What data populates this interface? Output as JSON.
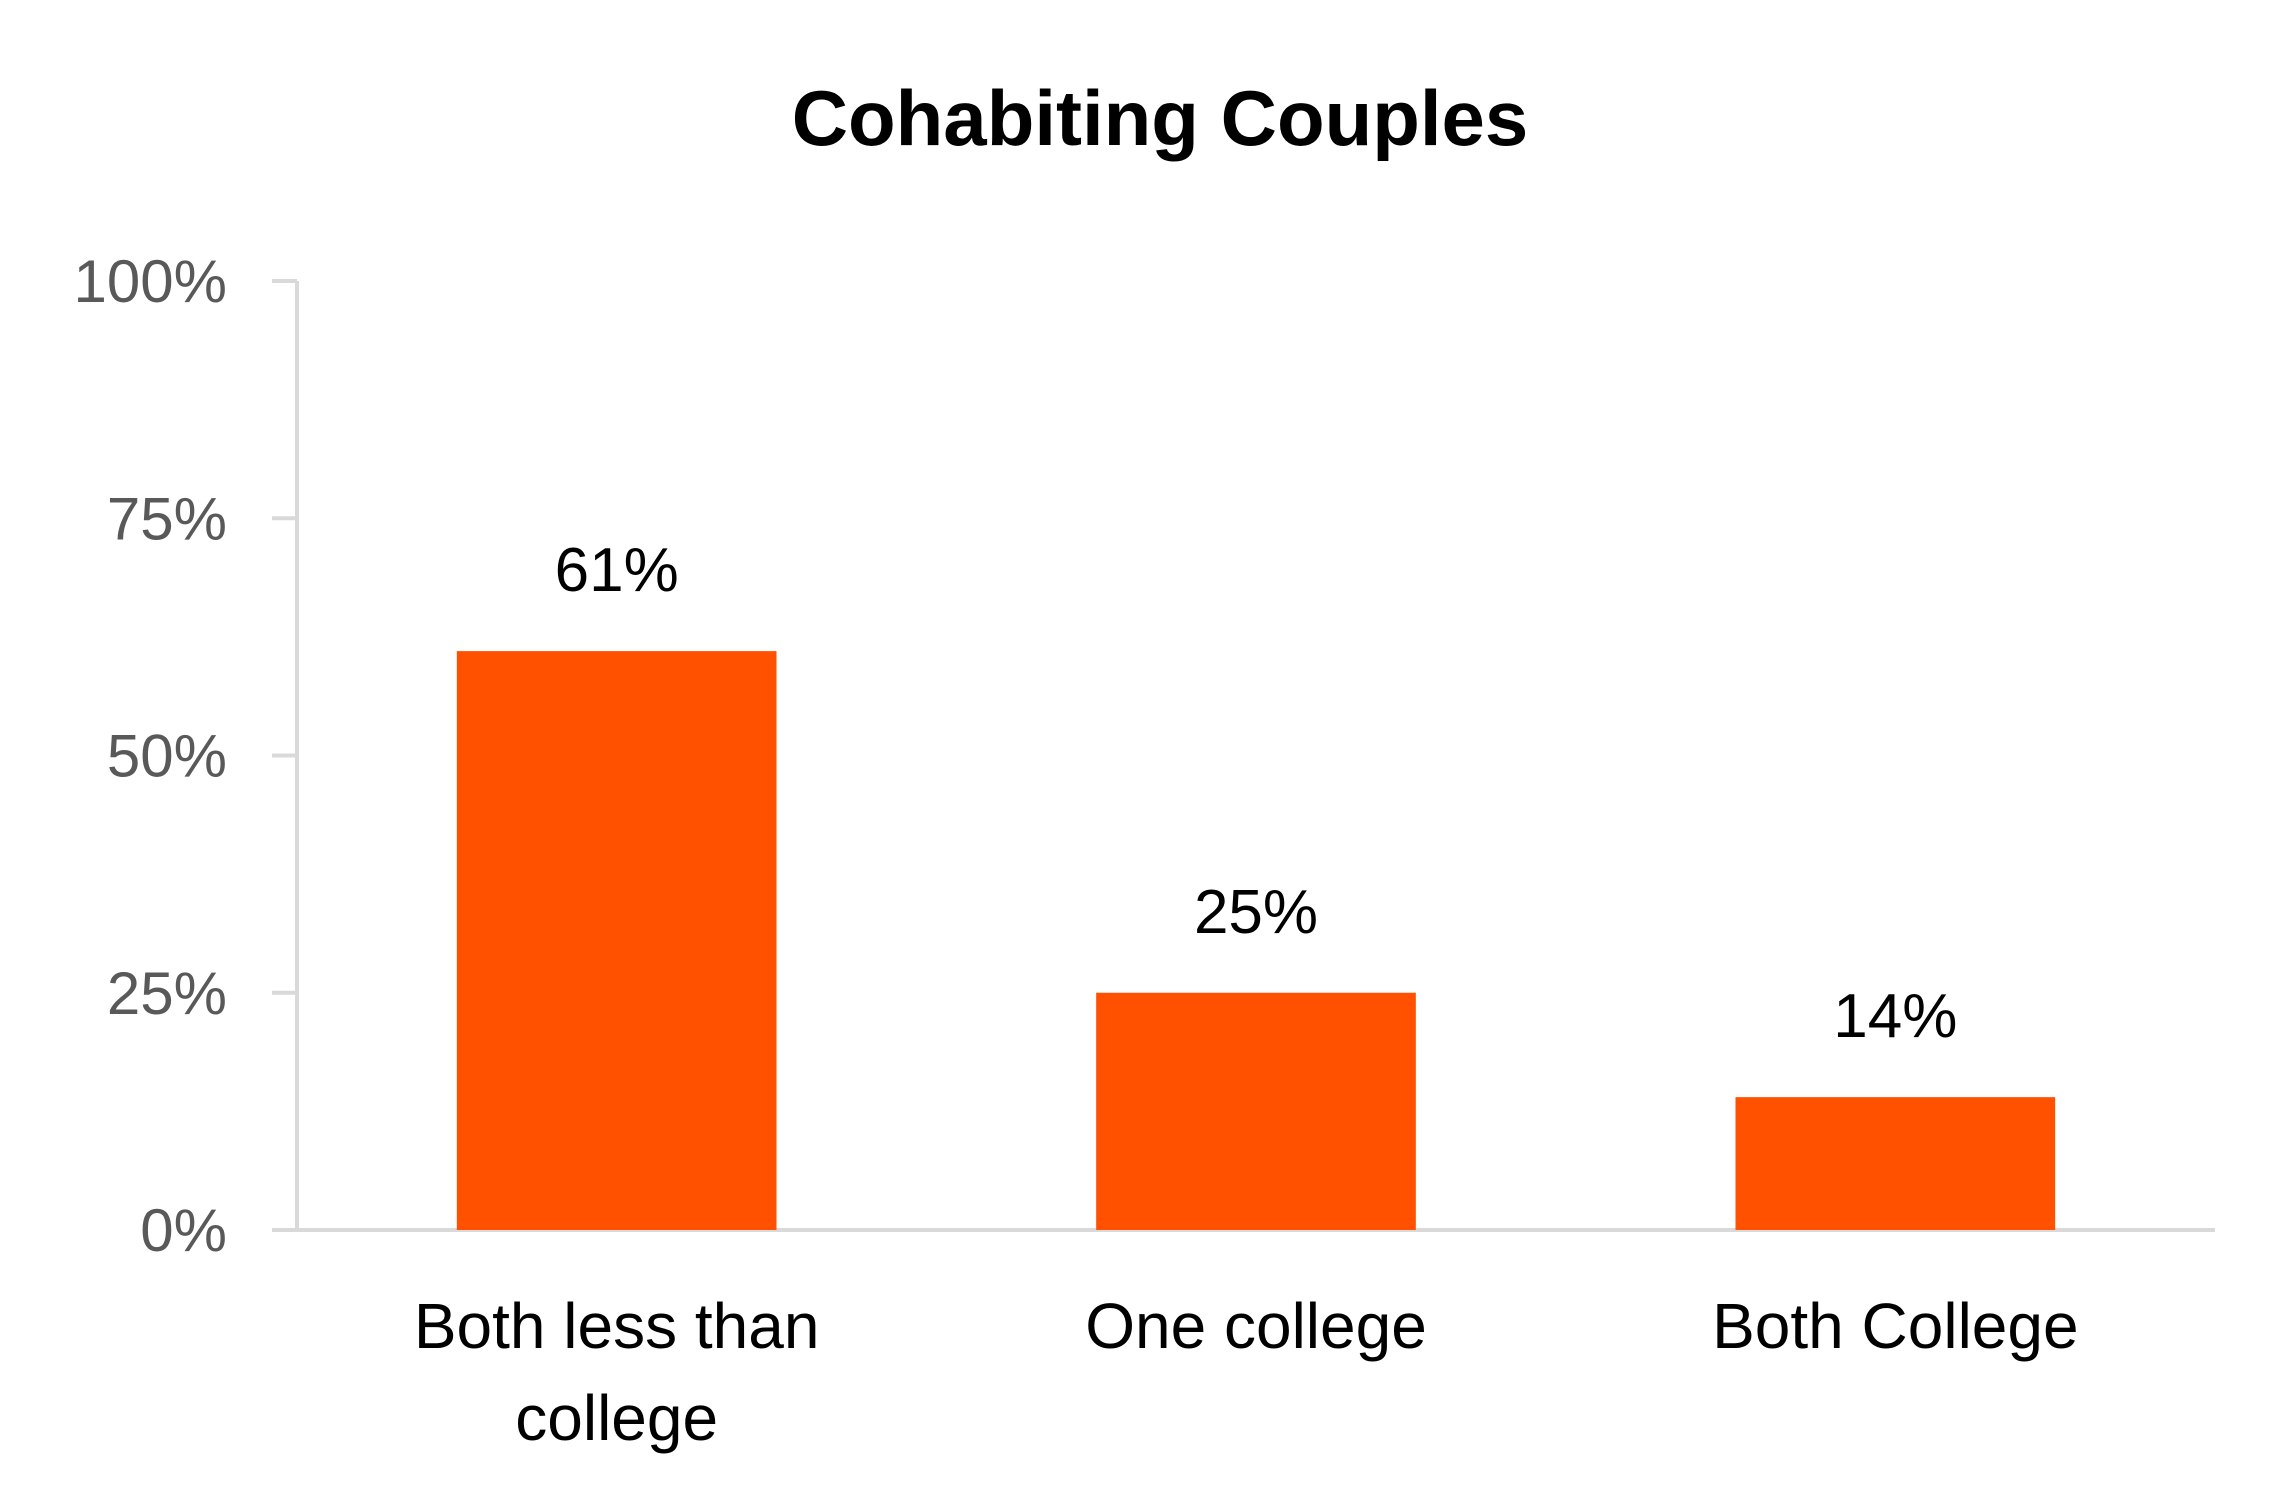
{
  "chart_data": {
    "type": "bar",
    "title": "Cohabiting Couples",
    "categories": [
      [
        "Both less than",
        "college"
      ],
      [
        "One college"
      ],
      [
        "Both College"
      ]
    ],
    "values": [
      61,
      25,
      14
    ],
    "data_labels": [
      "61%",
      "25%",
      "14%"
    ],
    "ylim": [
      0,
      100
    ],
    "yticks": [
      0,
      25,
      50,
      75,
      100
    ],
    "ytick_labels": [
      "0%",
      "25%",
      "50%",
      "75%",
      "100%"
    ],
    "xlabel": "",
    "ylabel": "",
    "grid": false,
    "legend": "none",
    "bar_color": "#FF5100",
    "axis_color": "#D9D9D9"
  }
}
